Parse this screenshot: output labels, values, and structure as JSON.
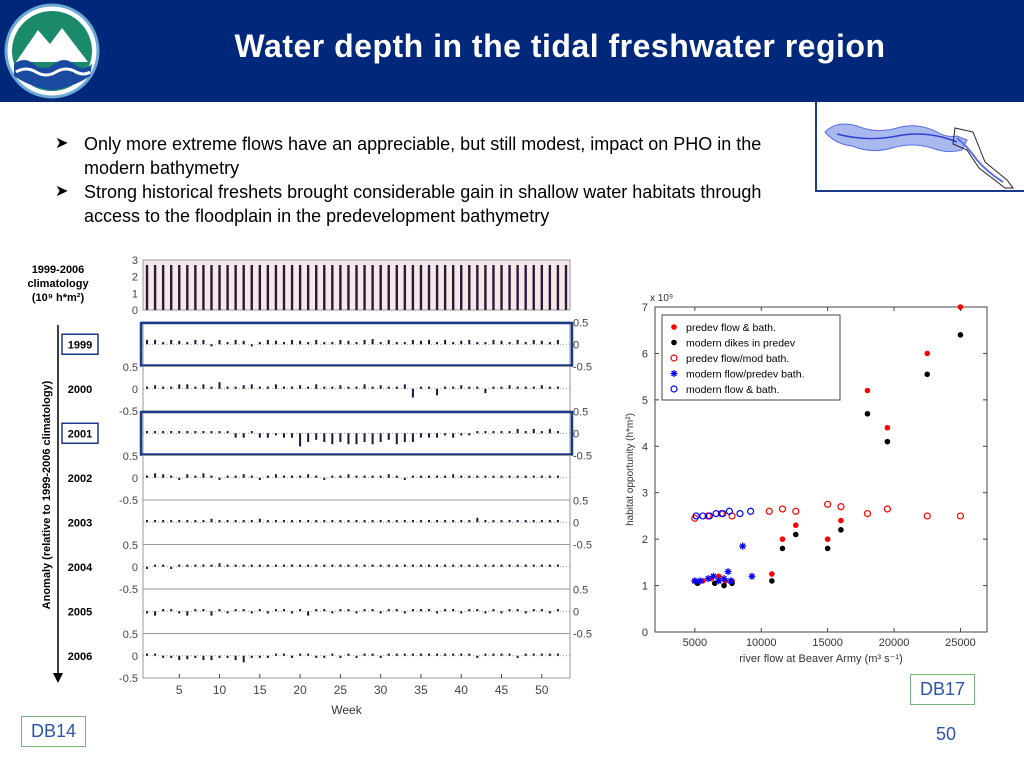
{
  "header": {
    "title": "Water depth in the tidal freshwater region"
  },
  "logo": {
    "name": "mountain-wave-logo"
  },
  "bullets": [
    "Only more extreme flows have an appreciable, but still modest, impact on PHO in the modern bathymetry",
    "Strong historical freshets brought considerable gain in shallow water habitats through access to the floodplain in the predevelopment bathymetry"
  ],
  "tags": {
    "left": "DB14",
    "right": "DB17"
  },
  "page_number": "50",
  "chart_data": [
    {
      "type": "bar",
      "climatology_label": [
        "1999-2006",
        "climatology",
        "(10⁹ h*m²)"
      ],
      "climatology_yticks": [
        0,
        1,
        2,
        3
      ],
      "climatology_values": [
        2.7,
        2.7,
        2.7,
        2.7,
        2.7,
        2.7,
        2.7,
        2.7,
        2.7,
        2.7,
        2.7,
        2.7,
        2.7,
        2.7,
        2.7,
        2.7,
        2.7,
        2.7,
        2.7,
        2.7,
        2.7,
        2.7,
        2.7,
        2.7,
        2.7,
        2.7,
        2.7,
        2.7,
        2.7,
        2.7,
        2.7,
        2.7,
        2.7,
        2.7,
        2.7,
        2.7,
        2.7,
        2.7,
        2.7,
        2.7,
        2.7,
        2.7,
        2.7,
        2.7,
        2.7,
        2.7,
        2.7,
        2.7,
        2.7,
        2.7,
        2.7,
        2.7,
        2.7
      ],
      "ylabel": "Anomaly (relative to 1999-2006 climatology)",
      "xlabel": "Week",
      "xticks": [
        5,
        10,
        15,
        20,
        25,
        30,
        35,
        40,
        45,
        50
      ],
      "anomaly_ticks": {
        "top": "0.5",
        "zero": "0",
        "bottom": "-0.5"
      },
      "highlighted_years": [
        "1999",
        "2001"
      ],
      "years": [
        {
          "year": "1999",
          "values": [
            0.1,
            0.1,
            0.05,
            0.1,
            0.08,
            0.05,
            0.1,
            0.1,
            -0.05,
            0.1,
            0.05,
            0.1,
            0.08,
            -0.05,
            0.05,
            0.1,
            0.08,
            0.05,
            0.1,
            0.08,
            0.05,
            0.1,
            0.05,
            0.05,
            0.1,
            0.08,
            0.05,
            0.1,
            0.12,
            0.05,
            0.1,
            0.05,
            0.05,
            0.1,
            0.08,
            0.1,
            0.05,
            0.1,
            0.05,
            0.08,
            0.1,
            0.05,
            0.05,
            0.1,
            0.08,
            0.05,
            0.1,
            0.05,
            0.1,
            0.08,
            0.05,
            0.1
          ]
        },
        {
          "year": "2000",
          "values": [
            0.05,
            0.08,
            0.05,
            0.05,
            0.1,
            0.1,
            0.05,
            0.1,
            0.05,
            0.15,
            0.05,
            0.05,
            0.08,
            0.1,
            0.05,
            0.05,
            0.1,
            0.05,
            0.05,
            0.08,
            0.05,
            0.1,
            0.05,
            0.05,
            0.08,
            0.05,
            0.05,
            0.1,
            0.05,
            0.08,
            0.05,
            0.05,
            0.1,
            -0.2,
            0.05,
            0.05,
            -0.15,
            0.05,
            0.05,
            0.08,
            0.05,
            0.05,
            -0.1,
            0.05,
            0.05,
            0.08,
            0.05,
            0.05,
            0.05,
            0.08,
            0.05,
            0.05
          ]
        },
        {
          "year": "2001",
          "values": [
            0.05,
            0.05,
            0.05,
            0.05,
            0.05,
            0.05,
            0.05,
            0.05,
            0.05,
            0.05,
            0.05,
            -0.1,
            -0.1,
            0.05,
            -0.1,
            -0.1,
            -0.05,
            -0.1,
            -0.1,
            -0.3,
            -0.2,
            -0.15,
            -0.2,
            -0.25,
            -0.2,
            -0.25,
            -0.25,
            -0.2,
            -0.25,
            -0.2,
            -0.15,
            -0.25,
            -0.2,
            -0.2,
            -0.1,
            -0.1,
            -0.1,
            -0.05,
            -0.1,
            -0.05,
            -0.05,
            0.05,
            0.05,
            0.05,
            0.05,
            0.05,
            0.1,
            0.05,
            0.1,
            0.05,
            0.1,
            0.05
          ]
        },
        {
          "year": "2002",
          "values": [
            0.05,
            0.1,
            0.08,
            0.05,
            -0.05,
            0.08,
            0.05,
            0.1,
            0.05,
            -0.05,
            0.05,
            0.05,
            0.08,
            0.05,
            -0.05,
            0.05,
            0.08,
            0.05,
            0.05,
            0.05,
            0.08,
            0.05,
            -0.05,
            0.05,
            0.05,
            0.08,
            0.05,
            0.05,
            0.05,
            0.05,
            0.08,
            0.05,
            -0.05,
            0.05,
            0.05,
            0.05,
            0.05,
            0.05,
            0.08,
            0.05,
            0.05,
            0.05,
            0.05,
            0.05,
            0.05,
            0.05,
            0.05,
            0.05,
            0.05,
            0.05,
            0.05,
            0.05
          ]
        },
        {
          "year": "2003",
          "values": [
            0.05,
            0.05,
            0.05,
            0.05,
            0.05,
            0.05,
            0.05,
            0.05,
            0.08,
            0.05,
            0.05,
            0.05,
            0.05,
            0.05,
            0.08,
            0.05,
            0.05,
            0.05,
            0.05,
            0.05,
            0.05,
            0.05,
            0.05,
            0.05,
            0.05,
            0.05,
            0.05,
            0.05,
            0.05,
            0.05,
            0.05,
            0.05,
            0.05,
            0.05,
            0.05,
            0.05,
            0.05,
            0.05,
            0.05,
            0.05,
            0.05,
            0.1,
            0.05,
            0.05,
            0.05,
            0.05,
            0.05,
            0.05,
            0.05,
            0.05,
            0.05,
            0.05
          ]
        },
        {
          "year": "2004",
          "values": [
            -0.05,
            0.05,
            0.05,
            -0.05,
            0.05,
            0.05,
            0.05,
            0.05,
            0.05,
            0.08,
            0.05,
            0.05,
            0.05,
            0.05,
            0.05,
            0.05,
            0.05,
            0.05,
            0.05,
            0.05,
            0.05,
            0.05,
            0.05,
            0.05,
            0.05,
            0.05,
            0.05,
            0.05,
            0.05,
            0.05,
            0.05,
            0.05,
            0.05,
            0.05,
            0.05,
            0.05,
            0.05,
            0.05,
            0.05,
            0.05,
            0.05,
            0.05,
            0.05,
            0.05,
            0.05,
            0.05,
            0.05,
            0.05,
            0.05,
            0.05,
            0.05,
            0.05
          ]
        },
        {
          "year": "2005",
          "values": [
            -0.05,
            -0.1,
            0.05,
            0.05,
            -0.05,
            -0.1,
            0.05,
            0.05,
            -0.1,
            0.05,
            -0.05,
            0.05,
            0.05,
            -0.05,
            0.05,
            -0.05,
            0.05,
            0.05,
            -0.05,
            0.05,
            -0.1,
            0.05,
            0.05,
            -0.05,
            0.05,
            0.05,
            -0.05,
            0.05,
            0.05,
            -0.05,
            0.05,
            0.05,
            -0.05,
            0.05,
            0.05,
            0.05,
            -0.05,
            0.05,
            0.05,
            -0.05,
            0.05,
            0.05,
            -0.05,
            0.05,
            -0.05,
            0.05,
            0.05,
            -0.05,
            0.05,
            0.05,
            -0.05,
            0.05
          ]
        },
        {
          "year": "2006",
          "values": [
            0.05,
            0.05,
            -0.05,
            -0.05,
            -0.1,
            -0.08,
            -0.05,
            -0.1,
            -0.1,
            -0.05,
            -0.05,
            -0.1,
            -0.15,
            -0.05,
            -0.05,
            -0.05,
            0.05,
            0.05,
            -0.05,
            0.05,
            0.05,
            -0.05,
            -0.05,
            0.05,
            -0.05,
            0.05,
            -0.05,
            0.05,
            0.05,
            -0.05,
            0.05,
            0.05,
            0.05,
            0.05,
            0.05,
            0.05,
            0.05,
            0.05,
            0.05,
            0.05,
            0.05,
            -0.05,
            0.05,
            0.05,
            0.05,
            0.05,
            -0.05,
            0.05,
            0.05,
            0.05,
            0.05,
            0.05
          ]
        }
      ]
    },
    {
      "type": "scatter",
      "xlabel": "river flow at Beaver Army (m³ s⁻¹)",
      "ylabel": "habitat opportunity (h*m²)",
      "y_multiplier": "x 10⁹",
      "xlim": [
        2000,
        27000
      ],
      "ylim": [
        0,
        7
      ],
      "xticks": [
        5000,
        10000,
        15000,
        20000,
        25000
      ],
      "yticks": [
        0,
        1,
        2,
        3,
        4,
        5,
        6,
        7
      ],
      "legend_position": "top-left",
      "series": [
        {
          "name": "predev flow & bath.",
          "marker": "dot",
          "color": "#ff0000",
          "points": [
            [
              5000,
              1.1
            ],
            [
              5600,
              1.1
            ],
            [
              6200,
              1.15
            ],
            [
              6800,
              1.2
            ],
            [
              7300,
              1.1
            ],
            [
              7800,
              1.1
            ],
            [
              10800,
              1.25
            ],
            [
              11600,
              2.0
            ],
            [
              12600,
              2.3
            ],
            [
              15000,
              2.0
            ],
            [
              16000,
              2.4
            ],
            [
              18000,
              5.2
            ],
            [
              19500,
              4.4
            ],
            [
              22500,
              6.0
            ],
            [
              25000,
              7.0
            ]
          ]
        },
        {
          "name": "modern dikes in predev",
          "marker": "dot",
          "color": "#000000",
          "points": [
            [
              5200,
              1.05
            ],
            [
              6500,
              1.05
            ],
            [
              7200,
              1.0
            ],
            [
              7800,
              1.05
            ],
            [
              10800,
              1.1
            ],
            [
              11600,
              1.8
            ],
            [
              12600,
              2.1
            ],
            [
              15000,
              1.8
            ],
            [
              16000,
              2.2
            ],
            [
              18000,
              4.7
            ],
            [
              19500,
              4.1
            ],
            [
              22500,
              5.55
            ],
            [
              25000,
              6.4
            ]
          ]
        },
        {
          "name": "predev flow/mod bath.",
          "marker": "ring",
          "color": "#ff0000",
          "points": [
            [
              5000,
              2.45
            ],
            [
              6000,
              2.5
            ],
            [
              7000,
              2.55
            ],
            [
              7800,
              2.5
            ],
            [
              10600,
              2.6
            ],
            [
              11600,
              2.65
            ],
            [
              12600,
              2.6
            ],
            [
              15000,
              2.75
            ],
            [
              16000,
              2.7
            ],
            [
              18000,
              2.55
            ],
            [
              19500,
              2.65
            ],
            [
              22500,
              2.5
            ],
            [
              25000,
              2.5
            ]
          ]
        },
        {
          "name": "modern flow/predev bath.",
          "marker": "star",
          "color": "#0000ff",
          "points": [
            [
              5000,
              1.1
            ],
            [
              5400,
              1.1
            ],
            [
              6000,
              1.15
            ],
            [
              6400,
              1.2
            ],
            [
              6800,
              1.1
            ],
            [
              7200,
              1.15
            ],
            [
              7500,
              1.3
            ],
            [
              7700,
              1.1
            ],
            [
              8600,
              1.85
            ],
            [
              9300,
              1.2
            ]
          ]
        },
        {
          "name": "modern flow & bath.",
          "marker": "ring",
          "color": "#0000ff",
          "points": [
            [
              5100,
              2.5
            ],
            [
              5600,
              2.5
            ],
            [
              6100,
              2.5
            ],
            [
              6600,
              2.55
            ],
            [
              7100,
              2.55
            ],
            [
              7600,
              2.6
            ],
            [
              8400,
              2.55
            ],
            [
              9200,
              2.6
            ]
          ]
        }
      ]
    }
  ]
}
